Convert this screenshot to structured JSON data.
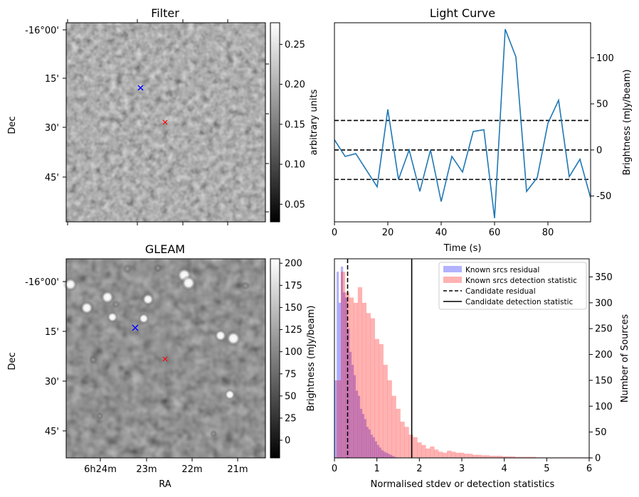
{
  "panels": {
    "filter": {
      "title": "Filter",
      "ylabel": "Dec",
      "dec_ticks": [
        "-16°00'",
        "15'",
        "30'",
        "45'"
      ],
      "colorbar": {
        "label": "arbitrary units",
        "ticks": [
          "0.25",
          "0.20",
          "0.15",
          "0.10",
          "0.05"
        ],
        "tick_values": [
          0.25,
          0.2,
          0.15,
          0.1,
          0.05
        ],
        "range": [
          0.028,
          0.277
        ]
      }
    },
    "gleam": {
      "title": "GLEAM",
      "xlabel": "RA",
      "ylabel": "Dec",
      "ra_ticks": [
        "6h24m",
        "23m",
        "22m",
        "21m"
      ],
      "dec_ticks": [
        "-16°00'",
        "15'",
        "30'",
        "45'"
      ],
      "colorbar": {
        "label": "Brightness (mJy/beam)",
        "ticks": [
          "200",
          "175",
          "150",
          "125",
          "100",
          "75",
          "50",
          "25",
          "0"
        ],
        "tick_values": [
          200,
          175,
          150,
          125,
          100,
          75,
          50,
          25,
          0
        ],
        "range": [
          -20,
          205
        ]
      }
    }
  },
  "markers": {
    "known_source_color": "#0000ff",
    "candidate_color": "#ff0000"
  },
  "chart_data": [
    {
      "type": "line",
      "title": "Light Curve",
      "xlabel": "Time (s)",
      "ylabel": "Brightness (mJy/beam)",
      "xlim": [
        0,
        96
      ],
      "ylim": [
        -78,
        138
      ],
      "xticks": [
        0,
        20,
        40,
        60,
        80
      ],
      "yticks": [
        -50,
        0,
        50,
        100
      ],
      "color": "#1f77b4",
      "x": [
        0,
        4,
        8,
        12,
        16,
        20,
        24,
        28,
        32,
        36,
        40,
        44,
        48,
        52,
        56,
        60,
        64,
        68,
        72,
        76,
        80,
        84,
        88,
        92,
        96
      ],
      "y": [
        11,
        -7,
        -4,
        -22,
        -40,
        44,
        -32,
        0,
        -45,
        0,
        -56,
        -7,
        -24,
        20,
        22,
        -74,
        131,
        101,
        -45,
        -30,
        29,
        54,
        -29,
        -10,
        -52
      ],
      "hlines": [
        32,
        0,
        -32
      ],
      "hline_style": "dashed black"
    },
    {
      "type": "histogram",
      "xlabel": "Normalised stdev or detection statistics",
      "ylabel": "Number of Sources",
      "xlim": [
        0,
        6
      ],
      "ylim": [
        0,
        385
      ],
      "xticks": [
        0,
        1,
        2,
        3,
        4,
        5,
        6
      ],
      "yticks": [
        0,
        50,
        100,
        150,
        200,
        250,
        300,
        350
      ],
      "bin_width": 0.1,
      "series": [
        {
          "name": "Known srcs residual",
          "color": "#0000ff",
          "bin_starts": [
            0,
            0.05,
            0.1,
            0.15,
            0.2,
            0.25,
            0.3,
            0.35,
            0.4,
            0.45,
            0.5,
            0.55,
            0.6,
            0.65,
            0.7,
            0.75,
            0.8,
            0.85,
            0.9,
            0.95,
            1.0,
            1.05,
            1.1,
            1.15,
            1.2,
            1.25,
            1.3,
            1.35,
            1.4
          ],
          "values": [
            150,
            360,
            300,
            370,
            320,
            310,
            250,
            205,
            180,
            160,
            130,
            120,
            95,
            85,
            75,
            60,
            55,
            45,
            40,
            32,
            25,
            20,
            15,
            12,
            10,
            8,
            6,
            4,
            2
          ]
        },
        {
          "name": "Known srcs detection statistic",
          "color": "#ff0000",
          "bin_starts": [
            0.05,
            0.15,
            0.25,
            0.35,
            0.45,
            0.55,
            0.65,
            0.75,
            0.85,
            0.95,
            1.05,
            1.15,
            1.25,
            1.35,
            1.45,
            1.55,
            1.65,
            1.75,
            1.85,
            1.95,
            2.05,
            2.15,
            2.25,
            2.35,
            2.45,
            2.55,
            2.65,
            2.75,
            2.85,
            2.95,
            3.05,
            3.15,
            3.25,
            3.35,
            3.45,
            3.55,
            3.65,
            3.75,
            3.85,
            3.95,
            4.05,
            4.15,
            4.25,
            4.35,
            4.45,
            4.55,
            4.65,
            4.75,
            4.85,
            4.95,
            5.05,
            5.15,
            5.25,
            5.35,
            5.45,
            5.55,
            5.65,
            5.75,
            5.85,
            5.95
          ],
          "values": [
            150,
            360,
            320,
            310,
            300,
            330,
            300,
            280,
            270,
            230,
            220,
            180,
            150,
            120,
            95,
            70,
            60,
            45,
            40,
            30,
            25,
            18,
            22,
            16,
            12,
            10,
            14,
            12,
            10,
            10,
            8,
            8,
            6,
            6,
            5,
            5,
            4,
            4,
            4,
            3,
            3,
            3,
            2,
            2,
            2,
            2,
            2,
            1,
            1,
            1,
            1,
            1,
            1,
            1,
            1,
            1,
            1,
            1,
            1,
            1
          ]
        }
      ],
      "vlines": [
        {
          "name": "Candidate residual",
          "x": 0.31,
          "style": "dashed"
        },
        {
          "name": "Candidate detection statistic",
          "x": 1.82,
          "style": "solid"
        }
      ]
    }
  ]
}
